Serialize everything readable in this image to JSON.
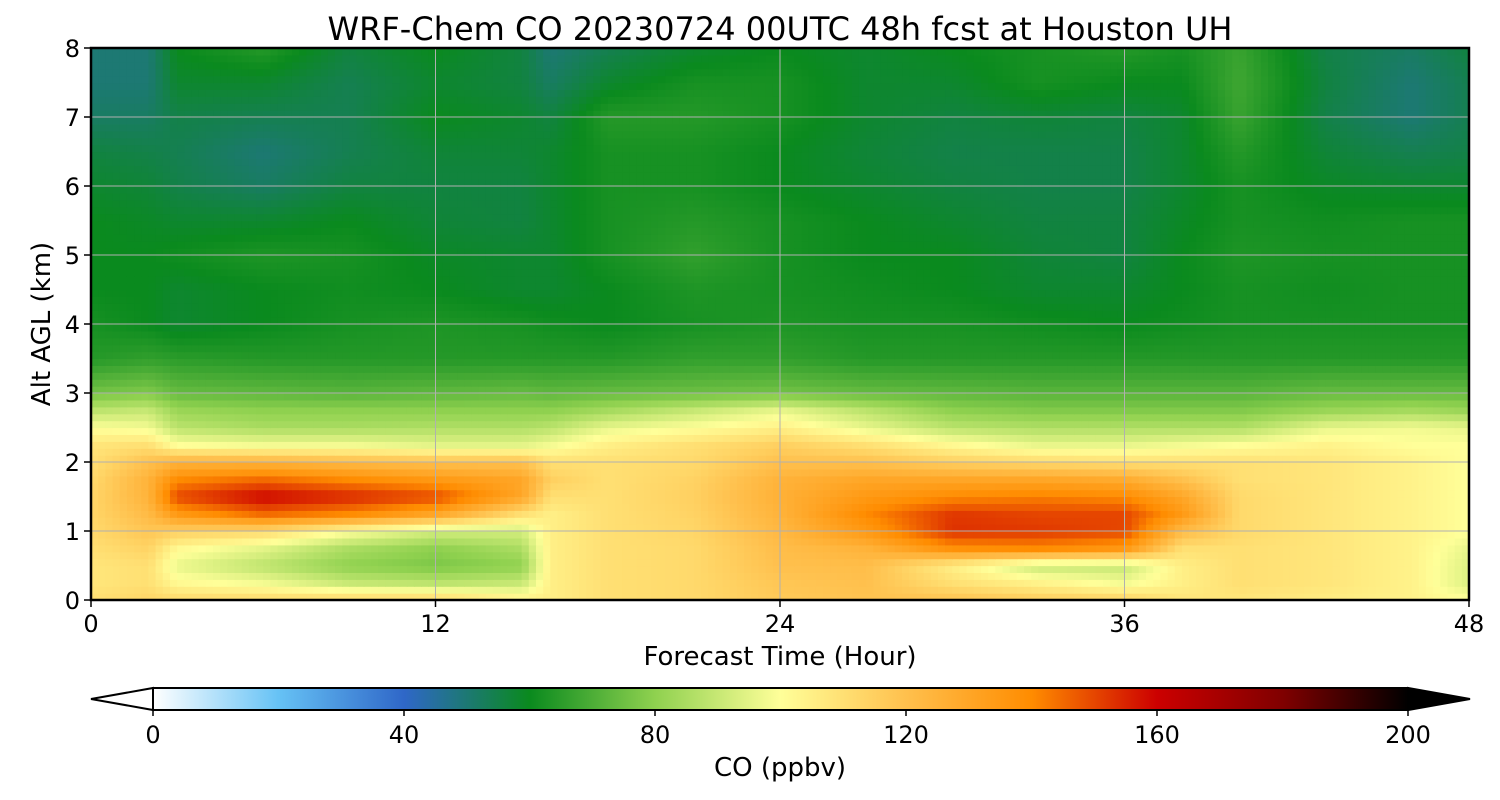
{
  "chart_data": {
    "type": "heatmap",
    "title": "WRF-Chem CO  20230724 00UTC 48h fcst at Houston UH",
    "xlabel": "Forecast Time (Hour)",
    "ylabel": "Alt AGL (km)",
    "xlim": [
      0,
      48
    ],
    "ylim": [
      0,
      8
    ],
    "xticks": [
      "0",
      "12",
      "24",
      "36",
      "48"
    ],
    "yticks": [
      "0",
      "1",
      "2",
      "3",
      "4",
      "5",
      "6",
      "7",
      "8"
    ],
    "grid": true,
    "colorbar": {
      "label": "CO  (ppbv)",
      "range": [
        0,
        200
      ],
      "ticks": [
        "0",
        "40",
        "80",
        "120",
        "160",
        "200"
      ],
      "extend": "both",
      "colors": [
        "#ffffff",
        "#66c2f5",
        "#2f67c8",
        "#0a8a1e",
        "#8fd14f",
        "#ffff99",
        "#ffc04d",
        "#ff8c00",
        "#cc0000",
        "#800000",
        "#000000"
      ]
    },
    "hours": [
      0,
      2,
      3,
      6,
      9,
      12,
      15,
      16,
      18,
      21,
      24,
      27,
      30,
      33,
      36,
      38,
      40,
      43,
      46,
      48
    ],
    "altitudes_km": [
      0,
      0.25,
      0.5,
      0.75,
      1,
      1.25,
      1.5,
      1.75,
      2,
      2.25,
      2.5,
      2.75,
      3,
      3.5,
      4,
      4.5,
      5,
      5.5,
      6,
      6.5,
      7,
      7.5,
      8
    ],
    "values_ppbv": [
      [
        110,
        113,
        112,
        112,
        113,
        113,
        105,
        105,
        110,
        112,
        117,
        119,
        119,
        116,
        114,
        108,
        108,
        106,
        104,
        100
      ],
      [
        108,
        110,
        102,
        98,
        90,
        88,
        90,
        105,
        110,
        112,
        118,
        120,
        110,
        104,
        98,
        105,
        110,
        108,
        104,
        94
      ],
      [
        108,
        110,
        96,
        88,
        80,
        77,
        80,
        105,
        110,
        112,
        120,
        121,
        105,
        90,
        90,
        105,
        110,
        108,
        104,
        94
      ],
      [
        110,
        114,
        102,
        95,
        85,
        80,
        85,
        105,
        110,
        112,
        121,
        125,
        138,
        140,
        135,
        110,
        110,
        108,
        104,
        96
      ],
      [
        112,
        118,
        115,
        112,
        100,
        92,
        92,
        105,
        110,
        113,
        123,
        135,
        153,
        152,
        150,
        122,
        112,
        108,
        104,
        100
      ],
      [
        113,
        122,
        135,
        145,
        140,
        130,
        110,
        105,
        110,
        114,
        125,
        140,
        152,
        150,
        150,
        135,
        112,
        108,
        104,
        100
      ],
      [
        113,
        125,
        150,
        160,
        155,
        150,
        130,
        110,
        110,
        115,
        126,
        135,
        140,
        142,
        140,
        130,
        112,
        108,
        104,
        100
      ],
      [
        112,
        125,
        140,
        145,
        140,
        135,
        130,
        115,
        110,
        114,
        125,
        130,
        130,
        130,
        128,
        120,
        110,
        108,
        104,
        100
      ],
      [
        110,
        120,
        125,
        125,
        122,
        120,
        120,
        110,
        110,
        112,
        120,
        120,
        115,
        112,
        110,
        110,
        110,
        108,
        104,
        100
      ],
      [
        108,
        110,
        100,
        98,
        98,
        95,
        95,
        98,
        105,
        110,
        115,
        110,
        102,
        96,
        96,
        98,
        100,
        104,
        100,
        100
      ],
      [
        100,
        98,
        88,
        85,
        85,
        86,
        86,
        88,
        96,
        100,
        105,
        96,
        88,
        86,
        86,
        86,
        86,
        96,
        98,
        96
      ],
      [
        88,
        90,
        82,
        80,
        80,
        80,
        80,
        80,
        84,
        90,
        96,
        88,
        80,
        78,
        78,
        78,
        78,
        82,
        84,
        82
      ],
      [
        76,
        78,
        74,
        73,
        72,
        73,
        74,
        73,
        74,
        75,
        76,
        74,
        73,
        72,
        72,
        72,
        72,
        74,
        74,
        74
      ],
      [
        64,
        66,
        65,
        64,
        64,
        64,
        64,
        64,
        64,
        66,
        66,
        64,
        64,
        64,
        64,
        64,
        64,
        64,
        64,
        64
      ],
      [
        62,
        60,
        58,
        60,
        62,
        63,
        62,
        61,
        60,
        62,
        63,
        62,
        62,
        61,
        60,
        61,
        62,
        62,
        62,
        62
      ],
      [
        60,
        60,
        58,
        60,
        61,
        60,
        58,
        58,
        60,
        63,
        62,
        61,
        60,
        58,
        58,
        60,
        62,
        61,
        62,
        62
      ],
      [
        60,
        60,
        61,
        63,
        62,
        59,
        58,
        58,
        62,
        66,
        62,
        60,
        60,
        57,
        56,
        60,
        63,
        62,
        62,
        62
      ],
      [
        60,
        59,
        58,
        58,
        60,
        57,
        56,
        58,
        62,
        64,
        62,
        60,
        58,
        56,
        56,
        59,
        62,
        61,
        62,
        62
      ],
      [
        58,
        57,
        55,
        52,
        56,
        56,
        56,
        58,
        62,
        62,
        60,
        58,
        56,
        55,
        55,
        58,
        62,
        59,
        58,
        58
      ],
      [
        56,
        55,
        54,
        50,
        54,
        57,
        57,
        58,
        62,
        62,
        60,
        57,
        55,
        55,
        55,
        58,
        64,
        57,
        54,
        55
      ],
      [
        52,
        52,
        55,
        54,
        54,
        60,
        58,
        56,
        64,
        64,
        62,
        58,
        56,
        57,
        56,
        58,
        67,
        55,
        50,
        54
      ],
      [
        50,
        50,
        58,
        58,
        54,
        58,
        56,
        52,
        58,
        62,
        62,
        58,
        58,
        62,
        60,
        60,
        68,
        56,
        50,
        54
      ],
      [
        50,
        50,
        60,
        64,
        56,
        60,
        56,
        50,
        54,
        58,
        60,
        58,
        60,
        62,
        64,
        62,
        67,
        55,
        52,
        56
      ]
    ]
  }
}
